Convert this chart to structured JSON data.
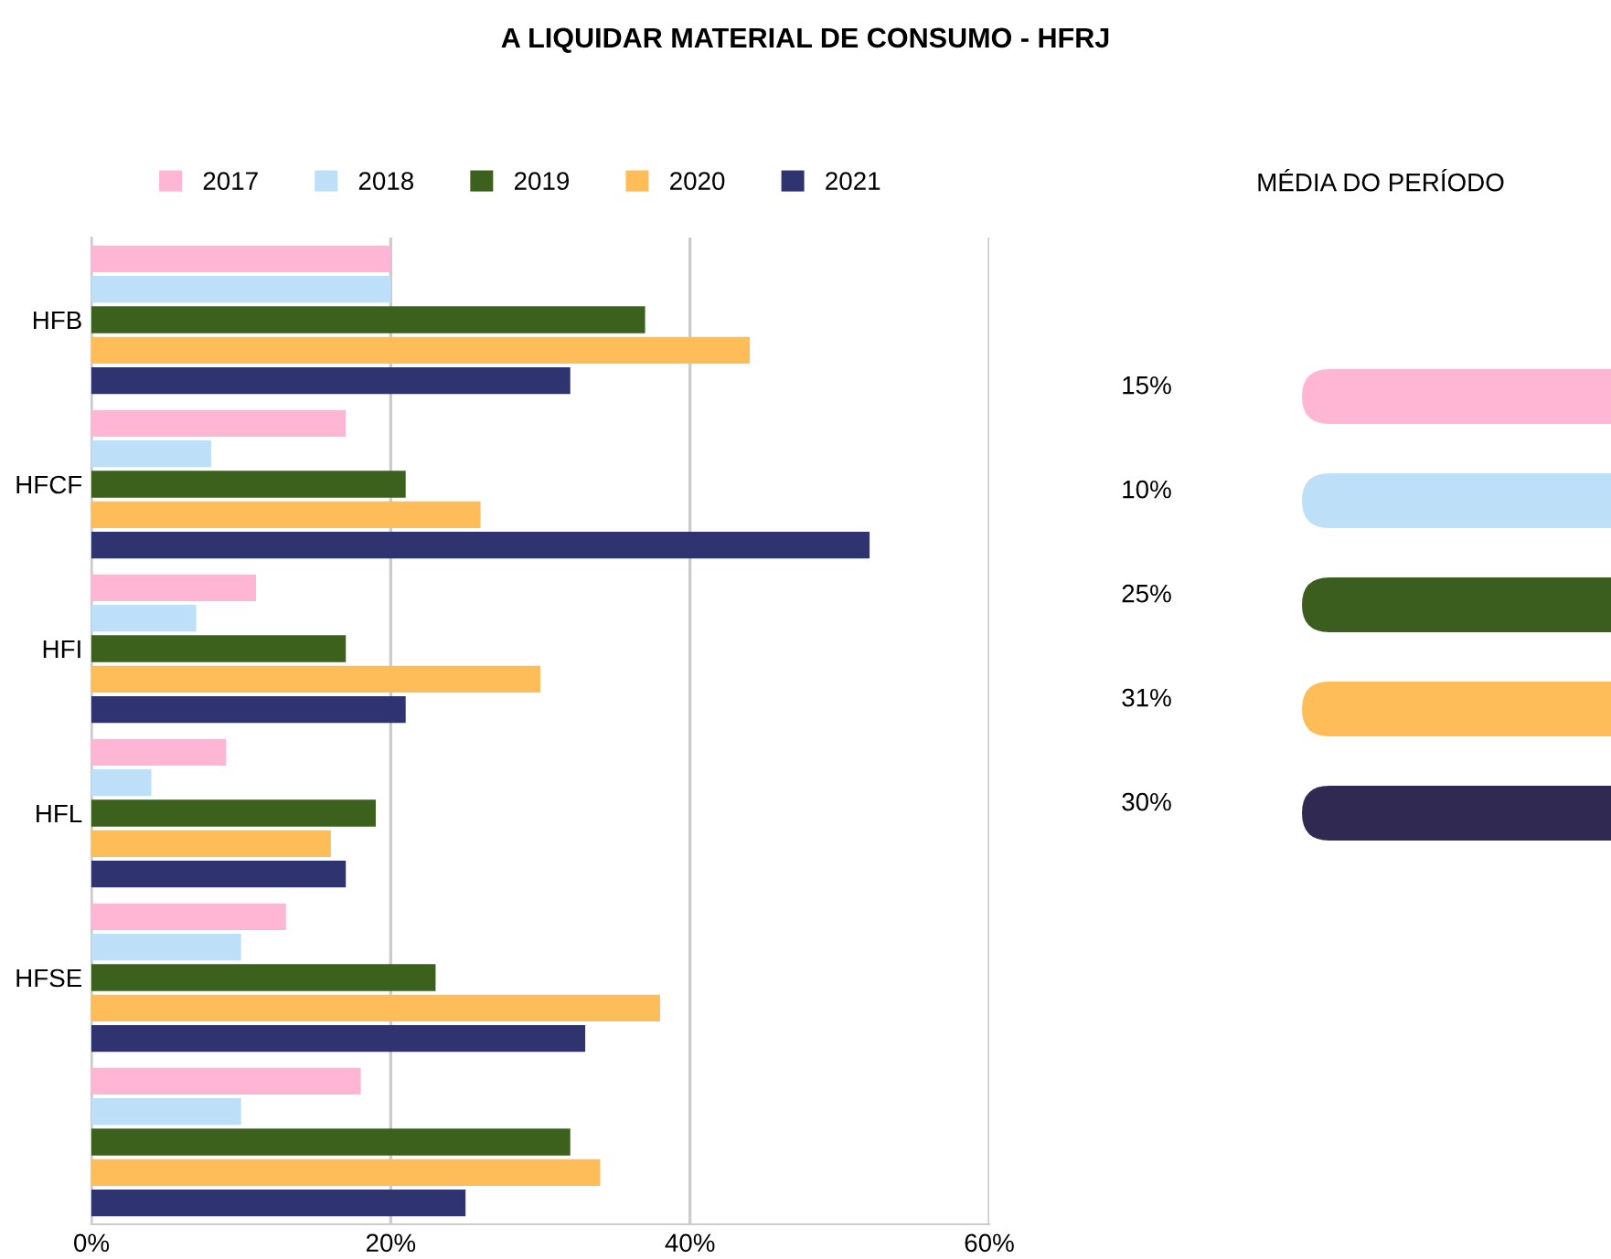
{
  "chart_data": [
    {
      "type": "bar",
      "title": "A LIQUIDAR MATERIAL DE CONSUMO - HFRJ",
      "orientation": "horizontal",
      "categories": [
        "HFB",
        "HFCF",
        "HFI",
        "HFL",
        "HFSE",
        null
      ],
      "series": [
        {
          "name": "2017",
          "color": "#ffb6d5",
          "values": [
            20,
            17,
            11,
            9,
            13,
            18
          ]
        },
        {
          "name": "2018",
          "color": "#bde0f8",
          "values": [
            20,
            8,
            7,
            4,
            10,
            10
          ]
        },
        {
          "name": "2019",
          "color": "#3b611d",
          "values": [
            37,
            21,
            17,
            19,
            23,
            32
          ]
        },
        {
          "name": "2020",
          "color": "#ffbd59",
          "values": [
            44,
            26,
            30,
            16,
            38,
            34
          ]
        },
        {
          "name": "2021",
          "color": "#2f3470",
          "values": [
            32,
            52,
            21,
            17,
            33,
            25
          ]
        }
      ],
      "xlim": [
        0,
        60
      ],
      "xticks": [
        {
          "value": 0,
          "label": "0%"
        },
        {
          "value": 20,
          "label": "20%"
        },
        {
          "value": 40,
          "label": "40%"
        },
        {
          "value": 60,
          "label": "60%"
        }
      ],
      "grid": "x",
      "legend": "top left"
    },
    {
      "type": "other",
      "title": "MÉDIA DO PERÍODO",
      "annotations": [
        "15%",
        "10%",
        "25%",
        "31%",
        "30%"
      ],
      "colors": [
        "#ffb6d5",
        "#bde0f8",
        "#3b5e1e",
        "#ffbd59",
        "#302a52"
      ]
    }
  ]
}
